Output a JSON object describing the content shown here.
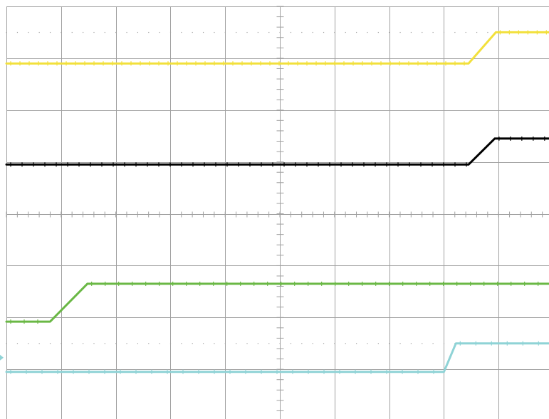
{
  "chart_data": {
    "type": "line",
    "grid": true,
    "grid_divisions": {
      "x": 10,
      "y": 8
    },
    "xlim": [
      0,
      10
    ],
    "ylim": [
      0,
      8
    ],
    "background": "#ffffff",
    "grid_color": "#a0a0a0",
    "series": [
      {
        "color": "#f2e03c",
        "x": [
          0,
          8.45,
          8.95,
          10
        ],
        "y": [
          6.9,
          6.9,
          7.5,
          7.5
        ]
      },
      {
        "color": "#000000",
        "x": [
          0,
          8.45,
          8.93,
          10
        ],
        "y": [
          4.95,
          4.95,
          5.45,
          5.45
        ]
      },
      {
        "color": "#6ab845",
        "x": [
          0,
          0.8,
          1.48,
          10
        ],
        "y": [
          1.92,
          1.92,
          2.65,
          2.65
        ]
      },
      {
        "color": "#8fd3d6",
        "x": [
          0,
          8.0,
          8.22,
          10
        ],
        "y": [
          0.95,
          0.95,
          1.5,
          1.5
        ]
      }
    ]
  }
}
